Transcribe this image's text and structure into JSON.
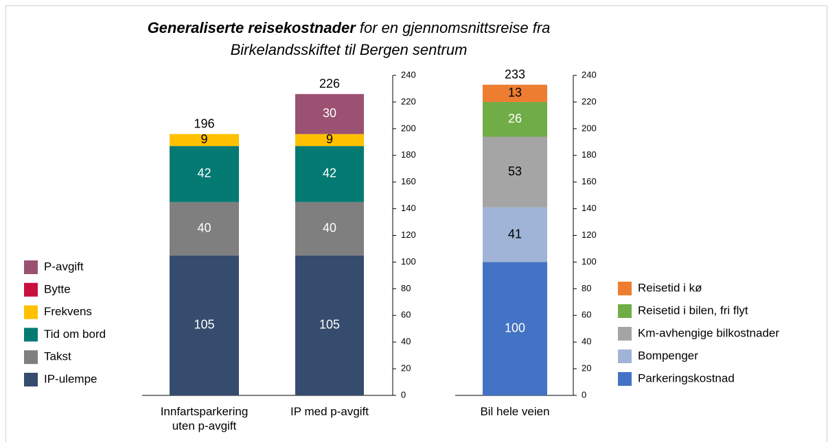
{
  "title": [
    "Generaliserte reisekostnader",
    "for en gjennomsnittsreise fra",
    "Birkelandsskiftet til Bergen sentrum"
  ],
  "chart_data": [
    {
      "type": "stacked_bar",
      "categories": [
        "Innfartsparkering uten p-avgift",
        "IP med p-avgift"
      ],
      "series": [
        {
          "name": "IP-ulempe",
          "color": "#364c6e",
          "label_color": "#ffffff",
          "values": [
            105,
            105
          ]
        },
        {
          "name": "Takst",
          "color": "#7f7f7f",
          "label_color": "#ffffff",
          "values": [
            40,
            40
          ]
        },
        {
          "name": "Tid om bord",
          "color": "#047a72",
          "label_color": "#ffffff",
          "values": [
            42,
            42
          ]
        },
        {
          "name": "Frekvens",
          "color": "#ffc000",
          "label_color": "#000000",
          "values": [
            9,
            9
          ]
        },
        {
          "name": "Bytte",
          "color": "#c8103e",
          "label_color": "#ffffff",
          "values": [
            0,
            0
          ]
        },
        {
          "name": "P-avgift",
          "color": "#9a5172",
          "label_color": "#ffffff",
          "values": [
            null,
            30
          ]
        }
      ],
      "totals": [
        196,
        226
      ],
      "ylim": [
        0,
        240
      ],
      "yticks": [
        0,
        20,
        40,
        60,
        80,
        100,
        120,
        140,
        160,
        180,
        200,
        220,
        240
      ]
    },
    {
      "type": "stacked_bar",
      "categories": [
        "Bil hele veien"
      ],
      "series": [
        {
          "name": "Parkeringskostnad",
          "color": "#4472c4",
          "label_color": "#ffffff",
          "values": [
            100
          ]
        },
        {
          "name": "Bompenger",
          "color": "#9fb4d6",
          "label_color": "#000000",
          "values": [
            41
          ]
        },
        {
          "name": "Km-avhengige bilkostnader",
          "color": "#a5a5a5",
          "label_color": "#000000",
          "values": [
            53
          ]
        },
        {
          "name": "Reisetid i bilen, fri flyt",
          "color": "#70ad47",
          "label_color": "#ffffff",
          "values": [
            26
          ]
        },
        {
          "name": "Reisetid i kø",
          "color": "#ed7d31",
          "label_color": "#000000",
          "values": [
            13
          ]
        }
      ],
      "totals": [
        233
      ],
      "ylim": [
        0,
        240
      ],
      "yticks": [
        0,
        20,
        40,
        60,
        80,
        100,
        120,
        140,
        160,
        180,
        200,
        220,
        240
      ]
    }
  ]
}
